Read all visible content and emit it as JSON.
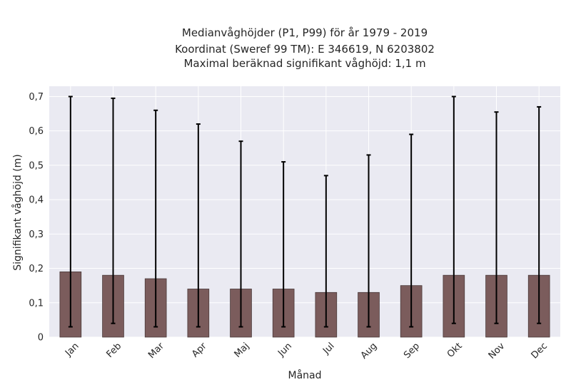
{
  "chart_data": {
    "type": "bar",
    "title_lines": [
      "Medianvåghöjder (P1, P99) för år 1979 - 2019",
      "Koordinat (Sweref 99 TM): E 346619, N 6203802",
      "Maximal beräknad signifikant våghöjd: 1,1 m"
    ],
    "xlabel": "Månad",
    "ylabel": "Signifikant våghöjd (m)",
    "categories": [
      "Jan",
      "Feb",
      "Mar",
      "Apr",
      "Maj",
      "Jun",
      "Jul",
      "Aug",
      "Sep",
      "Okt",
      "Nov",
      "Dec"
    ],
    "series": [
      {
        "values": [
          0.19,
          0.18,
          0.17,
          0.14,
          0.14,
          0.14,
          0.13,
          0.13,
          0.15,
          0.18,
          0.18,
          0.18
        ],
        "error_low": [
          0.03,
          0.04,
          0.03,
          0.03,
          0.03,
          0.03,
          0.03,
          0.03,
          0.03,
          0.04,
          0.04,
          0.04
        ],
        "error_high": [
          0.7,
          0.695,
          0.66,
          0.62,
          0.57,
          0.51,
          0.47,
          0.53,
          0.59,
          0.7,
          0.655,
          0.67
        ]
      }
    ],
    "ylim": [
      0,
      0.73
    ],
    "yticks": [
      0,
      0.1,
      0.2,
      0.3,
      0.4,
      0.5,
      0.6,
      0.7
    ],
    "ytick_labels": [
      "0",
      "0,1",
      "0,2",
      "0,3",
      "0,4",
      "0,5",
      "0,6",
      "0,7"
    ],
    "grid": true,
    "colors": {
      "bar": "#7b5c5c",
      "bar_edge": "#4a3a3a",
      "error": "#000000",
      "plot_bg": "#eaeaf2",
      "grid": "#ffffff"
    }
  }
}
